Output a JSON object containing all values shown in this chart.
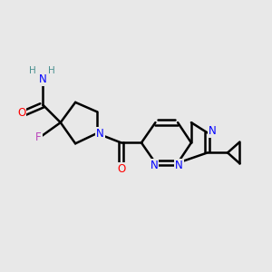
{
  "bg_color": "#e8e8e8",
  "bond_color": "#000000",
  "bond_width": 1.8,
  "atom_colors": {
    "N": "#0000ff",
    "O": "#ff0000",
    "F": "#bb44bb",
    "H": "#4a9090",
    "C": "#000000"
  },
  "font_size": 8.5,
  "fig_width": 3.0,
  "fig_height": 3.0,
  "dpi": 100
}
